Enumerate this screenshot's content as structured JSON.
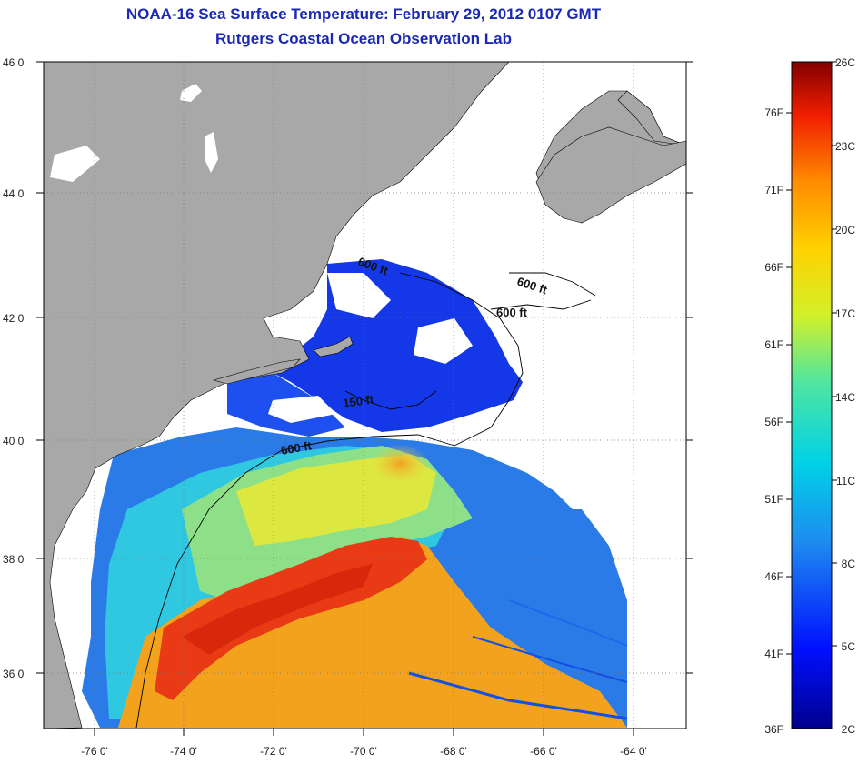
{
  "title": {
    "line1": "NOAA-16 Sea Surface Temperature:  February 29, 2012 0107 GMT",
    "line2": "Rutgers Coastal Ocean Observation Lab"
  },
  "map": {
    "lat_labels": [
      "46 0'",
      "44 0'",
      "42 0'",
      "40 0'",
      "38 0'",
      "36 0'"
    ],
    "lon_labels": [
      "-76 0'",
      "-74 0'",
      "-72 0'",
      "-70 0'",
      "-68 0'",
      "-66 0'",
      "-64 0'"
    ],
    "depth_labels": [
      "600 ft",
      "600 ft",
      "600 ft",
      "150 ft",
      "600 ft"
    ],
    "land_color": "#a8a8a8",
    "cloud_color": "#ffffff"
  },
  "colorbar": {
    "fahrenheit_labels": [
      "76F",
      "71F",
      "66F",
      "61F",
      "56F",
      "51F",
      "46F",
      "41F",
      "36F"
    ],
    "celsius_labels": [
      "26C",
      "23C",
      "20C",
      "17C",
      "14C",
      "11C",
      "8C",
      "5C",
      "2C"
    ]
  }
}
